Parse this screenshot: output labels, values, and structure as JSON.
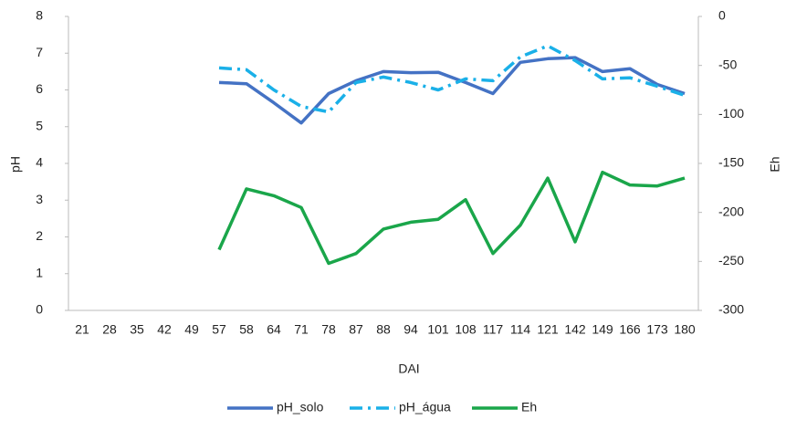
{
  "chart_data": {
    "type": "line",
    "x_label": "DAI",
    "y_label": "pH",
    "y2_label": "Eh",
    "categories": [
      "21",
      "28",
      "35",
      "42",
      "49",
      "57",
      "58",
      "64",
      "71",
      "78",
      "87",
      "88",
      "94",
      "101",
      "108",
      "117",
      "114",
      "121",
      "142",
      "149",
      "166",
      "173",
      "180"
    ],
    "series": [
      {
        "name": "pH_solo",
        "color": "#4472c4",
        "line_style": "solid",
        "axis": "y",
        "values": [
          null,
          null,
          null,
          null,
          null,
          6.2,
          6.17,
          5.65,
          5.1,
          5.9,
          6.25,
          6.5,
          6.47,
          6.48,
          6.2,
          5.9,
          6.75,
          6.85,
          6.88,
          6.5,
          6.58,
          6.15,
          5.9
        ]
      },
      {
        "name": "pH_água",
        "color": "#1ab0e8",
        "line_style": "dashdot",
        "axis": "y",
        "values": [
          null,
          null,
          null,
          null,
          null,
          6.6,
          6.55,
          6.0,
          5.55,
          5.4,
          6.2,
          6.35,
          6.2,
          6.0,
          6.3,
          6.25,
          6.9,
          7.2,
          6.8,
          6.3,
          6.33,
          6.1,
          5.85
        ]
      },
      {
        "name": "Eh",
        "color": "#1aa64a",
        "line_style": "solid",
        "axis": "y2",
        "values": [
          null,
          null,
          null,
          null,
          null,
          -238,
          -176,
          -183,
          -195,
          -252,
          -242,
          -217,
          -210,
          -207,
          -187,
          -242,
          -213,
          -165,
          -230,
          -159,
          -172,
          -173,
          -165
        ]
      }
    ],
    "ylim": [
      0,
      8
    ],
    "yticks": [
      0,
      1,
      2,
      3,
      4,
      5,
      6,
      7,
      8
    ],
    "y2lim": [
      -300,
      0
    ],
    "y2ticks": [
      -300,
      -250,
      -200,
      -150,
      -100,
      -50,
      0
    ],
    "legend": "bottom"
  }
}
